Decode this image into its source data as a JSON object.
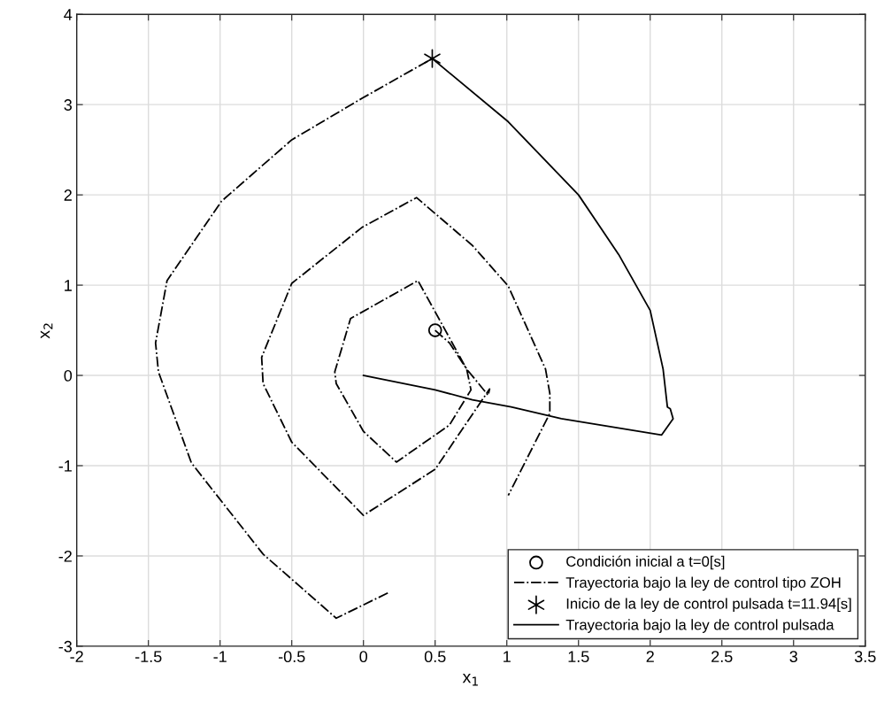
{
  "chart_data": {
    "type": "line",
    "xlabel": "x$_{1}$",
    "ylabel": "x$_{2}$",
    "xlim": [
      -2,
      3.5
    ],
    "ylim": [
      -3,
      4
    ],
    "xticks": [
      -2,
      -1.5,
      -1,
      -0.5,
      0,
      0.5,
      1,
      1.5,
      2,
      2.5,
      3,
      3.5
    ],
    "yticks": [
      -3,
      -2,
      -1,
      0,
      1,
      2,
      3,
      4
    ],
    "grid": true,
    "legend": "bottom right",
    "series": [
      {
        "name": "Condición inicial a t=0[s]",
        "type": "scatter",
        "marker": "circle",
        "color": "#000000",
        "x": [
          0.5
        ],
        "values": [
          0.5
        ]
      },
      {
        "name": "Trayectoria bajo la ley de control tipo ZOH",
        "type": "line",
        "line_style": "dashdot",
        "color": "#000000",
        "x": [
          0.5,
          0.6,
          0.72,
          0.75,
          0.6,
          0.23,
          0.0,
          -0.19,
          -0.2,
          -0.09,
          0.38,
          0.72,
          0.87,
          0.88,
          0.5,
          0.0,
          -0.5,
          -0.7,
          -0.71,
          -0.5,
          -0.01,
          0.37,
          0.76,
          1.01,
          1.27,
          1.3,
          1.3,
          1.01,
          null,
          0.17,
          -0.19,
          -0.7,
          -1.2,
          -1.43,
          -1.45,
          -1.37,
          -0.99,
          -0.5,
          -0.01,
          0.48
        ],
        "values": [
          0.5,
          0.36,
          0.07,
          -0.16,
          -0.55,
          -0.96,
          -0.62,
          -0.09,
          0.04,
          0.63,
          1.05,
          0.07,
          -0.22,
          -0.15,
          -1.04,
          -1.55,
          -0.74,
          -0.09,
          0.2,
          1.02,
          1.64,
          1.97,
          1.44,
          0.99,
          0.07,
          -0.2,
          -0.42,
          -1.33,
          null,
          -2.41,
          -2.69,
          -1.98,
          -0.97,
          0.04,
          0.36,
          1.05,
          1.93,
          2.61,
          3.07,
          3.51
        ]
      },
      {
        "name": "Inicio de la ley de control pulsada t=11.94[s]",
        "type": "scatter",
        "marker": "cross",
        "color": "#000000",
        "x": [
          0.48
        ],
        "values": [
          3.51
        ]
      },
      {
        "name": "Trayectoria bajo la ley de control pulsada",
        "type": "line",
        "line_style": "solid",
        "color": "#000000",
        "x": [
          0.48,
          1.01,
          1.5,
          1.78,
          2.0,
          2.09,
          2.12,
          2.14,
          2.16,
          2.08,
          1.38,
          1.03,
          0.76,
          0.5,
          0.0
        ],
        "values": [
          3.51,
          2.81,
          2.0,
          1.34,
          0.72,
          0.07,
          -0.35,
          -0.37,
          -0.48,
          -0.66,
          -0.48,
          -0.35,
          -0.27,
          -0.16,
          0.0
        ]
      }
    ]
  }
}
